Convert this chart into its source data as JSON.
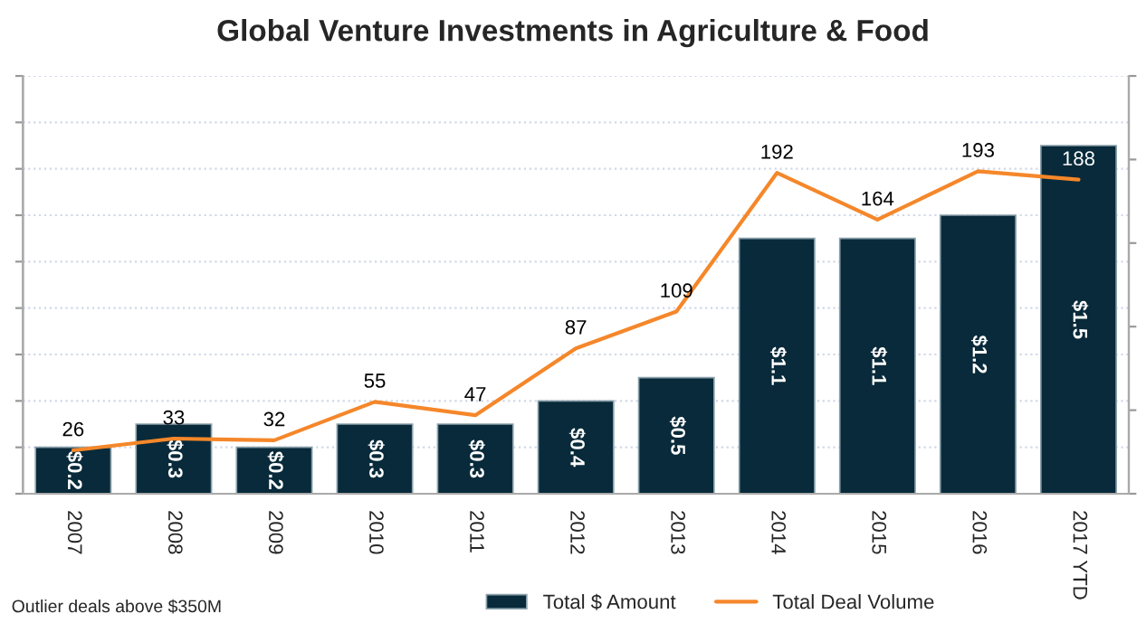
{
  "chart_data": {
    "type": "bar",
    "title": "Global Venture Investments in Agriculture & Food",
    "categories": [
      "2007",
      "2008",
      "2009",
      "2010",
      "2011",
      "2012",
      "2013",
      "2014",
      "2015",
      "2016",
      "2017 YTD"
    ],
    "series": [
      {
        "name": "Total $ Amount",
        "color": "#082a3a",
        "values": [
          0.2,
          0.3,
          0.2,
          0.3,
          0.3,
          0.4,
          0.5,
          1.1,
          1.1,
          1.2,
          1.5
        ],
        "value_labels": [
          "$0.2",
          "$0.3",
          "$0.2",
          "$0.3",
          "$0.3",
          "$0.4",
          "$0.5",
          "$1.1",
          "$1.1",
          "$1.2",
          "$1.5"
        ]
      },
      {
        "name": "Total Deal Volume",
        "type": "line",
        "axis": "y2",
        "color": "#f5872a",
        "values": [
          26,
          33,
          32,
          55,
          47,
          87,
          109,
          192,
          164,
          193,
          188
        ],
        "value_labels": [
          "26",
          "33",
          "32",
          "55",
          "47",
          "87",
          "109",
          "192",
          "164",
          "193",
          "188"
        ]
      }
    ],
    "ylim": [
      0,
      1.8
    ],
    "yticks": [
      {
        "value": 0,
        "label": null
      },
      {
        "value": 0.2,
        "label": null
      },
      {
        "value": 0.4,
        "label": null
      },
      {
        "value": 0.6,
        "label": null
      },
      {
        "value": 0.8,
        "label": null
      },
      {
        "value": 1.0,
        "label": null
      },
      {
        "value": 1.2,
        "label": null
      },
      {
        "value": 1.4,
        "label": null
      },
      {
        "value": 1.6,
        "label": null
      },
      {
        "value": 1.8,
        "label": null
      }
    ],
    "y2lim": [
      0,
      250
    ],
    "y2ticks": [
      {
        "value": 0,
        "label": null
      },
      {
        "value": 50,
        "label": null
      },
      {
        "value": 100,
        "label": null
      },
      {
        "value": 150,
        "label": null
      },
      {
        "value": 200,
        "label": null
      },
      {
        "value": 250,
        "label": null
      }
    ],
    "tick_labels": "x",
    "grid": "y",
    "legend": "bottom",
    "marker": "none",
    "line_style": "solid",
    "annotations": [
      "Outlier deals above $350M"
    ]
  }
}
